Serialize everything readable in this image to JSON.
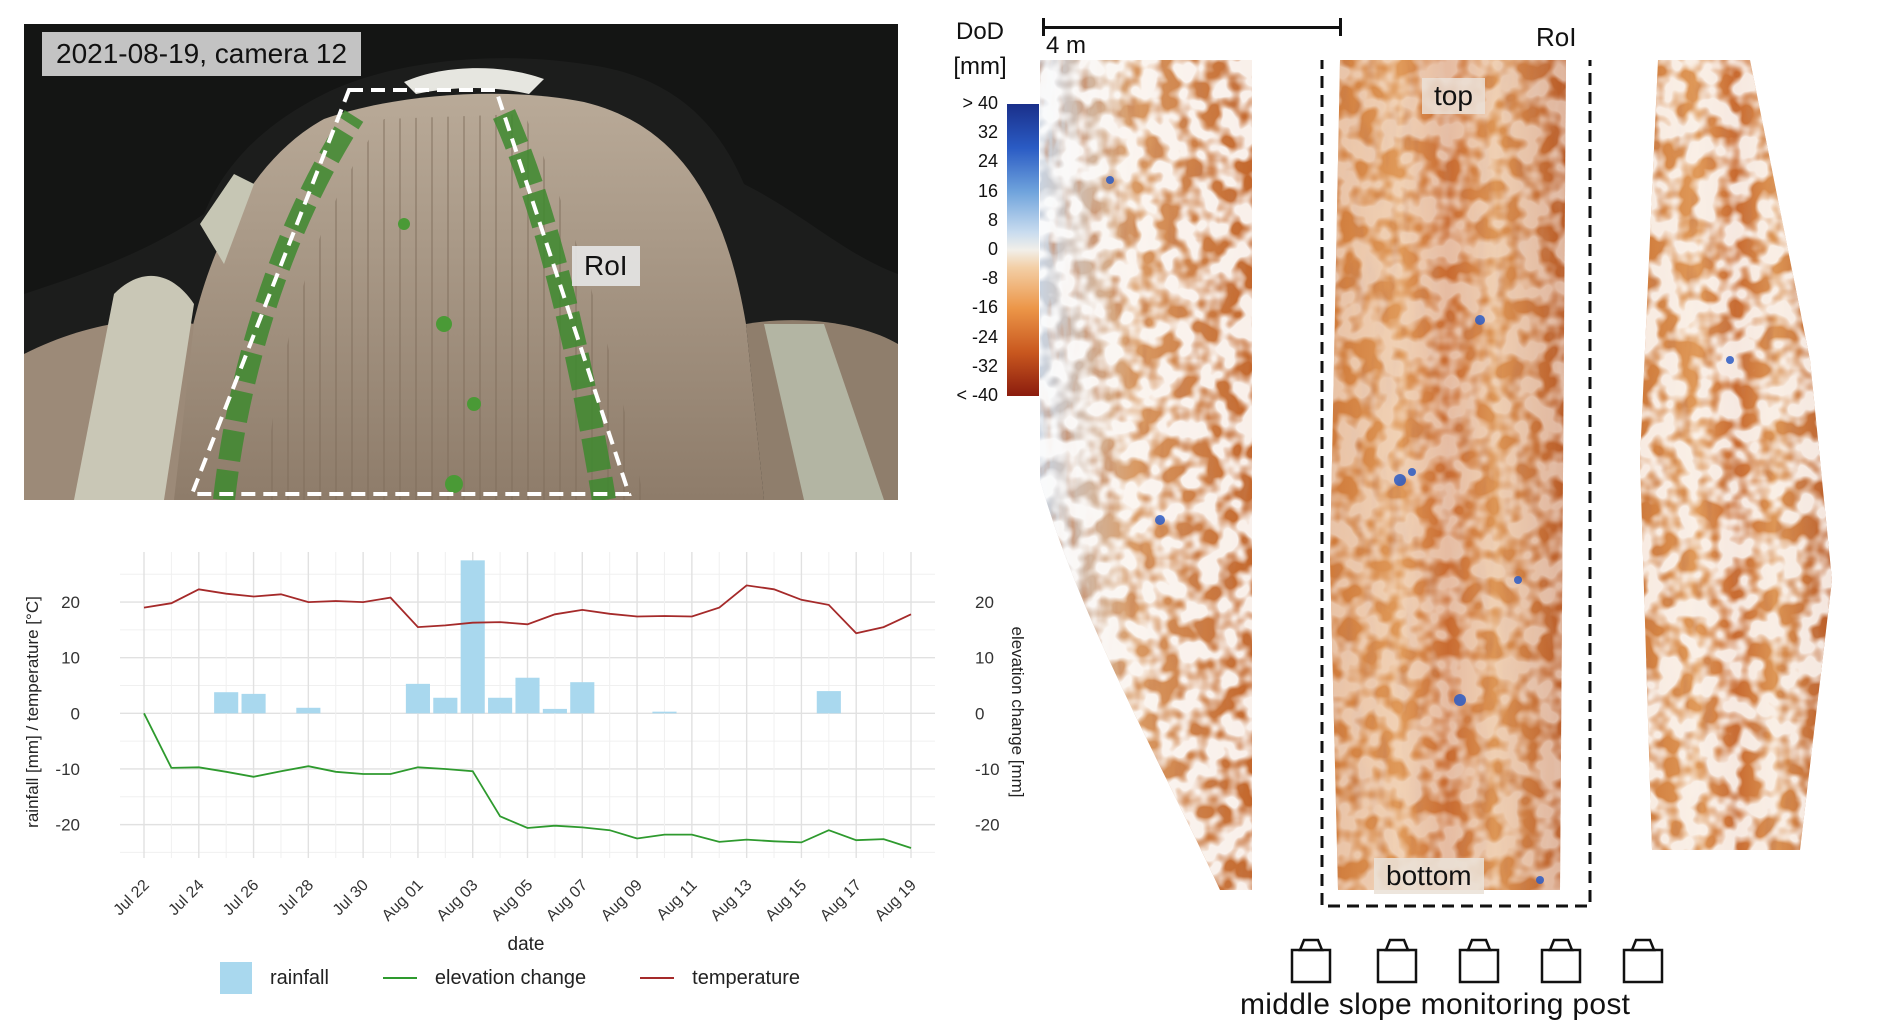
{
  "photo": {
    "label": "2021-08-19, camera 12",
    "roi_label": "RoI"
  },
  "chart_data": {
    "type": "line",
    "xlabel": "date",
    "ylabel_left": "rainfall [mm] / temperature [°C]",
    "ylabel_right": "elevation change [mm]",
    "ylim": [
      -26,
      29
    ],
    "y_ticks": [
      -20,
      -10,
      0,
      10,
      20
    ],
    "x_start": "2021-07-22",
    "x_end": "2021-08-19",
    "x_tick_labels": [
      "Jul 22",
      "Jul 24",
      "Jul 26",
      "Jul 28",
      "Jul 30",
      "Aug 01",
      "Aug 03",
      "Aug 05",
      "Aug 07",
      "Aug 09",
      "Aug 11",
      "Aug 13",
      "Aug 15",
      "Aug 17",
      "Aug 19"
    ],
    "dates": [
      "2021-07-22",
      "2021-07-23",
      "2021-07-24",
      "2021-07-25",
      "2021-07-26",
      "2021-07-27",
      "2021-07-28",
      "2021-07-29",
      "2021-07-30",
      "2021-07-31",
      "2021-08-01",
      "2021-08-02",
      "2021-08-03",
      "2021-08-04",
      "2021-08-05",
      "2021-08-06",
      "2021-08-07",
      "2021-08-08",
      "2021-08-09",
      "2021-08-10",
      "2021-08-11",
      "2021-08-12",
      "2021-08-13",
      "2021-08-14",
      "2021-08-15",
      "2021-08-16",
      "2021-08-17",
      "2021-08-18",
      "2021-08-19"
    ],
    "series": [
      {
        "name": "rainfall",
        "kind": "bar",
        "color": "#a9d8ee",
        "values": [
          0,
          0,
          0,
          3.8,
          3.5,
          0,
          1.0,
          0,
          0,
          0,
          5.3,
          2.8,
          27.5,
          2.8,
          6.4,
          0.8,
          5.6,
          0,
          0,
          0.3,
          0,
          0,
          0,
          0,
          0,
          4.0,
          0,
          0,
          0
        ]
      },
      {
        "name": "elevation change",
        "kind": "line",
        "color": "#2e9a2e",
        "values": [
          0,
          -9.8,
          -9.7,
          -10.5,
          -11.4,
          -10.4,
          -9.5,
          -10.5,
          -10.9,
          -10.9,
          -9.7,
          -10.0,
          -10.4,
          -18.5,
          -20.6,
          -20.2,
          -20.5,
          -21.0,
          -22.5,
          -21.8,
          -21.8,
          -23.1,
          -22.7,
          -23.0,
          -23.2,
          -21.0,
          -22.8,
          -22.6,
          -24.2
        ]
      },
      {
        "name": "temperature",
        "kind": "line",
        "color": "#a52a2a",
        "values": [
          19.0,
          19.8,
          22.3,
          21.5,
          21.0,
          21.4,
          20.0,
          20.2,
          20.0,
          20.8,
          15.5,
          15.8,
          16.3,
          16.4,
          16.0,
          17.8,
          18.6,
          17.9,
          17.4,
          17.5,
          17.4,
          19.0,
          23.0,
          22.3,
          20.4,
          19.5,
          14.4,
          15.5,
          17.8
        ]
      }
    ],
    "legend_position": "bottom",
    "grid": true
  },
  "colorbar": {
    "title_lines": [
      "DoD",
      "[mm]"
    ],
    "tick_labels": [
      "> 40",
      "32",
      "24",
      "16",
      "8",
      "0",
      "-8",
      "-16",
      "-24",
      "-32",
      "< -40"
    ]
  },
  "scalebar": {
    "label": "4 m"
  },
  "map": {
    "roi_label": "RoI",
    "top_label": "top",
    "bottom_label": "bottom"
  },
  "post": {
    "label": "middle slope monitoring post"
  }
}
